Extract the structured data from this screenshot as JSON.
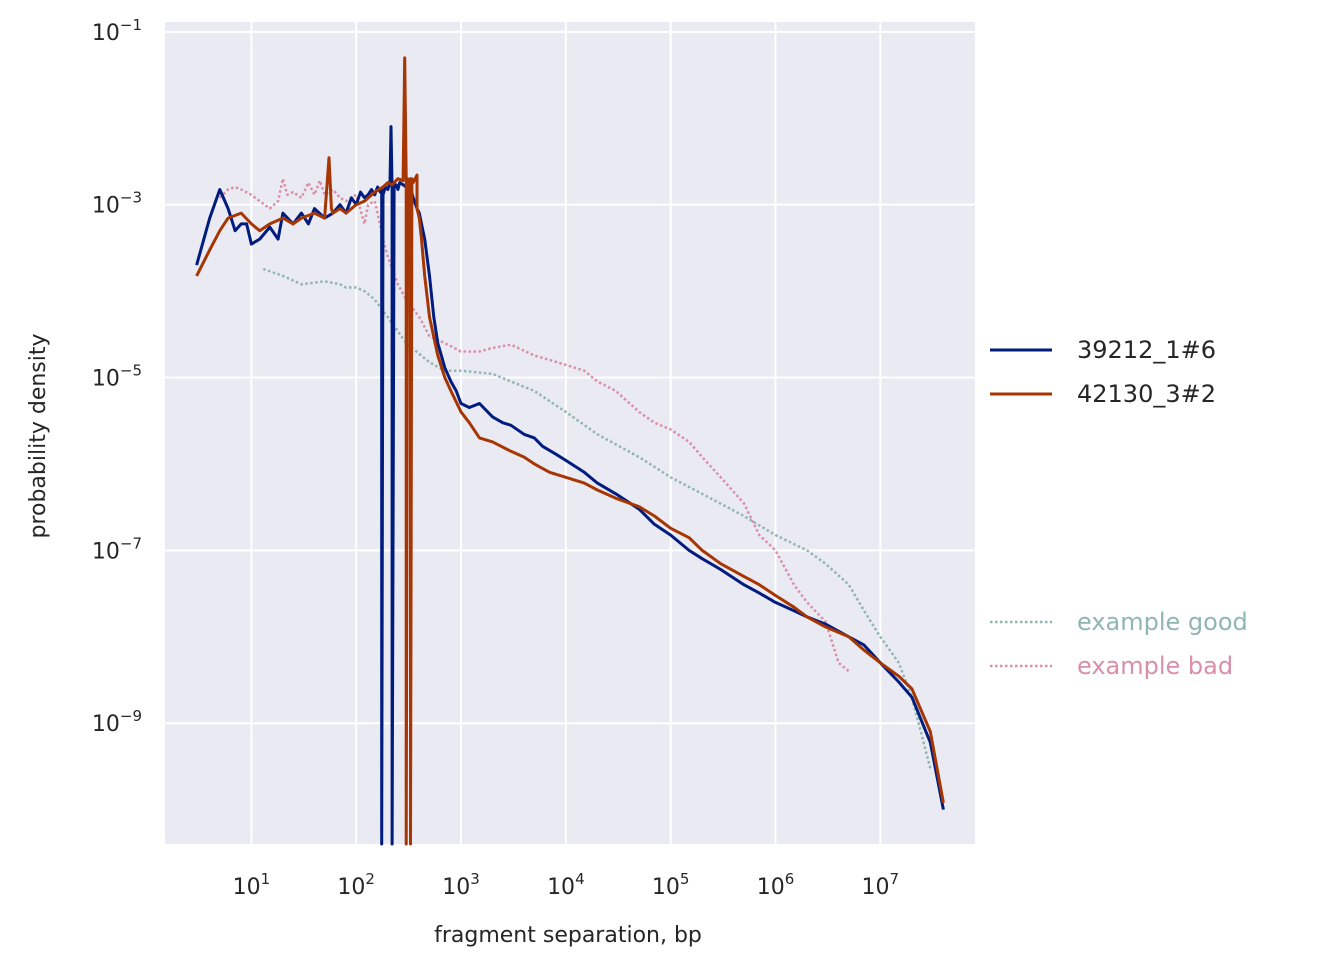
{
  "chart_data": {
    "type": "line",
    "title": "",
    "xlabel": "fragment separation, bp",
    "ylabel": "probability density",
    "xscale": "log",
    "yscale": "log",
    "xlim": [
      1.5,
      80000000
    ],
    "ylim": [
      4e-11,
      0.13
    ],
    "grid": true,
    "legend_placement": "right",
    "x_ticks": [
      {
        "value": 10,
        "base": "10",
        "exp": "1"
      },
      {
        "value": 100,
        "base": "10",
        "exp": "2"
      },
      {
        "value": 1000,
        "base": "10",
        "exp": "3"
      },
      {
        "value": 10000,
        "base": "10",
        "exp": "4"
      },
      {
        "value": 100000,
        "base": "10",
        "exp": "5"
      },
      {
        "value": 1000000,
        "base": "10",
        "exp": "6"
      },
      {
        "value": 10000000,
        "base": "10",
        "exp": "7"
      }
    ],
    "y_ticks": [
      {
        "value": 1e-09,
        "base": "10",
        "exp": "−9"
      },
      {
        "value": 1e-07,
        "base": "10",
        "exp": "−7"
      },
      {
        "value": 1e-05,
        "base": "10",
        "exp": "−5"
      },
      {
        "value": 0.001,
        "base": "10",
        "exp": "−3"
      },
      {
        "value": 0.1,
        "base": "10",
        "exp": "−1"
      }
    ],
    "series": [
      {
        "name": "39212_1#6",
        "color": "#001c7f",
        "style": "solid",
        "x": [
          3,
          4,
          5,
          6,
          7,
          8,
          9,
          10,
          12,
          15,
          18,
          20,
          25,
          30,
          35,
          40,
          50,
          60,
          70,
          80,
          90,
          100,
          110,
          120,
          130,
          140,
          150,
          160,
          170,
          175,
          175,
          180,
          190,
          200,
          210,
          215,
          220,
          220,
          230,
          240,
          250,
          260,
          280,
          300,
          320,
          350,
          380,
          400,
          420,
          450,
          500,
          550,
          600,
          700,
          800,
          900,
          1000,
          1200,
          1500,
          2000,
          2500,
          3000,
          4000,
          5000,
          6000,
          8000,
          10000,
          15000,
          20000,
          30000,
          50000,
          70000,
          100000,
          150000,
          200000,
          300000,
          500000,
          700000,
          1000000,
          1500000,
          2000000,
          3000000,
          5000000,
          7000000,
          10000000,
          15000000,
          20000000,
          30000000,
          40000000
        ],
        "y": [
          0.0002,
          0.0007,
          0.0015,
          0.0009,
          0.0005,
          0.0006,
          0.0006,
          0.00035,
          0.0004,
          0.00055,
          0.0004,
          0.0008,
          0.0006,
          0.0008,
          0.0006,
          0.0009,
          0.0007,
          0.0008,
          0.001,
          0.0008,
          0.0012,
          0.001,
          0.0014,
          0.0012,
          0.0013,
          0.0015,
          0.0013,
          0.0016,
          0.0014,
          0.0015,
          4e-11,
          0.0013,
          0.0016,
          0.0015,
          0.0018,
          0.008,
          0.0015,
          4e-11,
          0.0016,
          0.0017,
          0.0015,
          0.0018,
          0.0017,
          0.0016,
          0.0018,
          0.0012,
          0.0009,
          0.0008,
          0.0006,
          0.0004,
          0.00015,
          5e-05,
          2.5e-05,
          1.3e-05,
          9e-06,
          7e-06,
          5e-06,
          4.5e-06,
          5e-06,
          3.5e-06,
          3e-06,
          2.8e-06,
          2.2e-06,
          2e-06,
          1.6e-06,
          1.3e-06,
          1.1e-06,
          8e-07,
          6e-07,
          4.5e-07,
          3e-07,
          2e-07,
          1.5e-07,
          1e-07,
          8e-08,
          6e-08,
          4e-08,
          3.2e-08,
          2.5e-08,
          2e-08,
          1.7e-08,
          1.4e-08,
          1e-08,
          8e-09,
          5e-09,
          3e-09,
          2e-09,
          6e-10,
          1e-10
        ]
      },
      {
        "name": "42130_3#2",
        "color": "#a63603",
        "style": "solid",
        "x": [
          3,
          4,
          5,
          6,
          8,
          10,
          12,
          15,
          20,
          25,
          30,
          40,
          50,
          55,
          58,
          60,
          70,
          80,
          100,
          120,
          150,
          180,
          200,
          220,
          250,
          280,
          290,
          300,
          300,
          310,
          320,
          330,
          330,
          340,
          350,
          380,
          380,
          400,
          420,
          450,
          500,
          600,
          700,
          800,
          1000,
          1200,
          1500,
          2000,
          3000,
          4000,
          5000,
          7000,
          10000,
          15000,
          20000,
          30000,
          50000,
          70000,
          100000,
          150000,
          200000,
          300000,
          500000,
          700000,
          1000000,
          1500000,
          2000000,
          3000000,
          5000000,
          7000000,
          10000000,
          15000000,
          20000000,
          30000000,
          40000000
        ],
        "y": [
          0.00015,
          0.0003,
          0.0005,
          0.0007,
          0.0008,
          0.0006,
          0.0005,
          0.0006,
          0.0007,
          0.0006,
          0.0007,
          0.0008,
          0.0007,
          0.0035,
          0.0009,
          0.0008,
          0.0009,
          0.0008,
          0.001,
          0.0011,
          0.0014,
          0.0016,
          0.0018,
          0.0017,
          0.002,
          0.0019,
          0.05,
          0.002,
          4e-11,
          0.002,
          0.0018,
          0.002,
          4e-11,
          0.002,
          0.0018,
          0.0022,
          0.0009,
          0.0007,
          0.0004,
          0.00015,
          5e-05,
          1.8e-05,
          1e-05,
          7e-06,
          4e-06,
          3e-06,
          2e-06,
          1.8e-06,
          1.4e-06,
          1.2e-06,
          1e-06,
          8e-07,
          7e-07,
          6e-07,
          5e-07,
          4e-07,
          3.2e-07,
          2.5e-07,
          1.8e-07,
          1.4e-07,
          1e-07,
          7e-08,
          5e-08,
          4e-08,
          3e-08,
          2.2e-08,
          1.7e-08,
          1.3e-08,
          1e-08,
          7e-09,
          5e-09,
          3.5e-09,
          2.5e-09,
          8e-10,
          1.2e-10
        ]
      },
      {
        "name": "example good",
        "color": "#8fb6b0",
        "style": "dotted",
        "x": [
          13,
          20,
          30,
          50,
          70,
          80,
          100,
          120,
          150,
          200,
          300,
          500,
          700,
          1000,
          2000,
          3000,
          5000,
          10000,
          20000,
          50000,
          100000,
          200000,
          500000,
          1000000,
          2000000,
          3000000,
          5000000,
          7000000,
          10000000,
          15000000,
          20000000,
          30000000
        ],
        "y": [
          0.00018,
          0.00015,
          0.00012,
          0.00013,
          0.00012,
          0.00011,
          0.00011,
          0.0001,
          8e-05,
          5e-05,
          2.5e-05,
          1.5e-05,
          1.2e-05,
          1.2e-05,
          1.1e-05,
          9e-06,
          7e-06,
          4e-06,
          2.2e-06,
          1.2e-06,
          7e-07,
          4.5e-07,
          2.5e-07,
          1.5e-07,
          1e-07,
          7e-08,
          4e-08,
          2e-08,
          1e-08,
          5e-09,
          2e-09,
          3e-10
        ]
      },
      {
        "name": "example bad",
        "color": "#d98fa8",
        "style": "dotted",
        "x": [
          5,
          6,
          7,
          8,
          10,
          12,
          15,
          18,
          20,
          22,
          25,
          30,
          35,
          40,
          45,
          50,
          60,
          70,
          80,
          100,
          120,
          130,
          150,
          160,
          180,
          200,
          250,
          300,
          400,
          500,
          700,
          1000,
          1500,
          2000,
          3000,
          5000,
          7000,
          10000,
          15000,
          20000,
          30000,
          50000,
          70000,
          100000,
          150000,
          200000,
          300000,
          500000,
          700000,
          1000000,
          1500000,
          2000000,
          3000000,
          4000000,
          5000000
        ],
        "y": [
          0.0012,
          0.0015,
          0.0016,
          0.0015,
          0.0013,
          0.0011,
          0.0009,
          0.0011,
          0.002,
          0.0013,
          0.0014,
          0.0012,
          0.0018,
          0.0013,
          0.0019,
          0.0013,
          0.0015,
          0.0012,
          0.0011,
          0.0013,
          0.0006,
          0.001,
          0.0011,
          0.0008,
          0.0004,
          0.00025,
          0.00012,
          8e-05,
          5e-05,
          3e-05,
          2.5e-05,
          2e-05,
          2e-05,
          2.2e-05,
          2.4e-05,
          1.8e-05,
          1.6e-05,
          1.4e-05,
          1.2e-05,
          9e-06,
          7e-06,
          4e-06,
          3e-06,
          2.5e-06,
          1.8e-06,
          1.2e-06,
          7e-07,
          3.5e-07,
          1.5e-07,
          1e-07,
          4e-08,
          2.5e-08,
          1.5e-08,
          5e-09,
          4e-09
        ]
      }
    ]
  }
}
